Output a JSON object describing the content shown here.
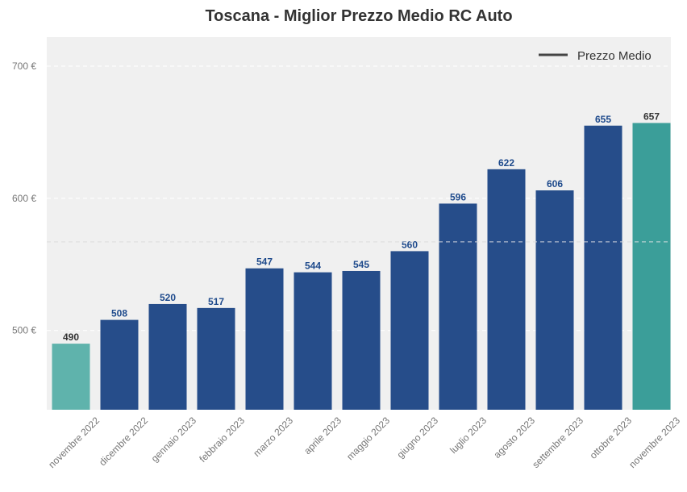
{
  "chart_data": {
    "type": "bar",
    "title": "Toscana - Miglior Prezzo Medio RC Auto",
    "xlabel": "",
    "ylabel": "",
    "categories": [
      "novembre 2022",
      "dicembre 2022",
      "gennaio 2023",
      "febbraio 2023",
      "marzo 2023",
      "aprile 2023",
      "maggio 2023",
      "giugno 2023",
      "luglio 2023",
      "agosto 2023",
      "settembre 2023",
      "ottobre 2023",
      "novembre 2023"
    ],
    "values": [
      490,
      508,
      520,
      517,
      547,
      544,
      545,
      560,
      596,
      622,
      606,
      655,
      657
    ],
    "ylim": [
      440,
      722
    ],
    "yticks": [
      500,
      600,
      700
    ],
    "ytick_labels": [
      "500 €",
      "600 €",
      "700 €"
    ],
    "mean_line": 567,
    "legend": {
      "label": "Prezzo Medio",
      "placement": "top-right"
    },
    "grid": true,
    "colors": {
      "bar": "#264d8a",
      "bar_first": "#5fb3ac",
      "bar_last": "#3b9e99",
      "label_blue": "#1e4a8c",
      "label_dark": "#333333",
      "background": "#f0f0f0",
      "mean_line": "#cccccc",
      "legend_line": "#444444"
    }
  }
}
